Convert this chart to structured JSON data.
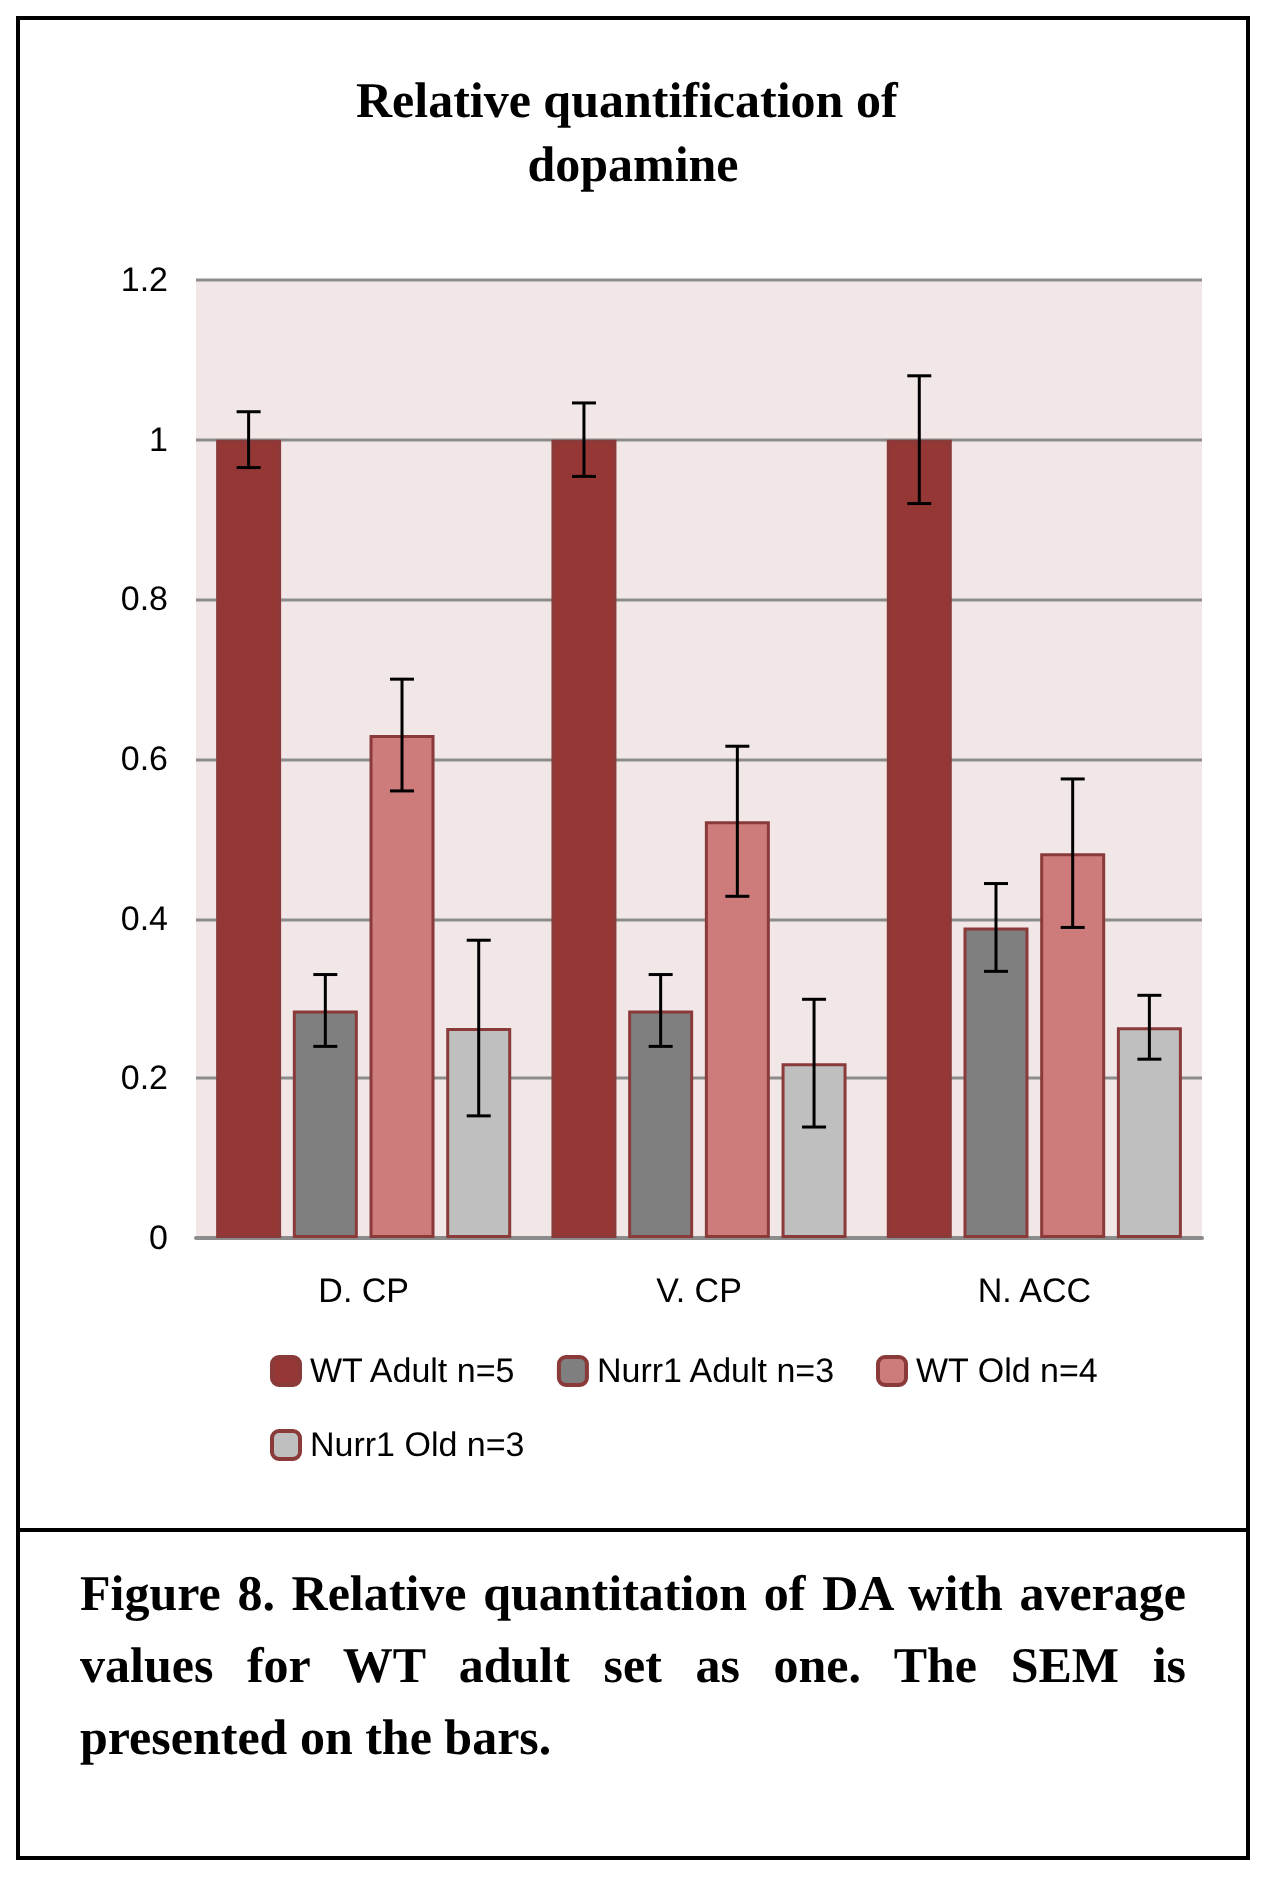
{
  "chart_data": {
    "type": "bar",
    "title": "Relative quantification of dopamine",
    "categories": [
      "D. CP",
      "V. CP",
      "N. ACC"
    ],
    "series": [
      {
        "name": "WT Adult n=5",
        "color": "#953735",
        "values": [
          1,
          1,
          1
        ],
        "errors": [
          0.035,
          0.046,
          0.08
        ]
      },
      {
        "name": "Nurr1 Adult n=3",
        "color": "#7f7f7f",
        "values": [
          0.285,
          0.285,
          0.389
        ],
        "errors": [
          0.045,
          0.045,
          0.055
        ]
      },
      {
        "name": "WT Old n=4",
        "color": "#cd7b7b",
        "values": [
          0.63,
          0.522,
          0.482
        ],
        "errors": [
          0.07,
          0.094,
          0.093
        ]
      },
      {
        "name": "Nurr1 Old n=3",
        "color": "#bfbfbf",
        "values": [
          0.263,
          0.219,
          0.264
        ],
        "errors": [
          0.11,
          0.08,
          0.04
        ]
      }
    ],
    "ylim": [
      0,
      1.2
    ],
    "yticks": [
      0,
      0.2,
      0.4,
      0.6,
      0.8,
      1,
      1.2
    ],
    "grid": "y",
    "legend": "bottom",
    "annotations": [
      "Figure 8. Relative quantitation of DA with average values for WT adult set as one. The SEM is presented on the bars."
    ]
  }
}
